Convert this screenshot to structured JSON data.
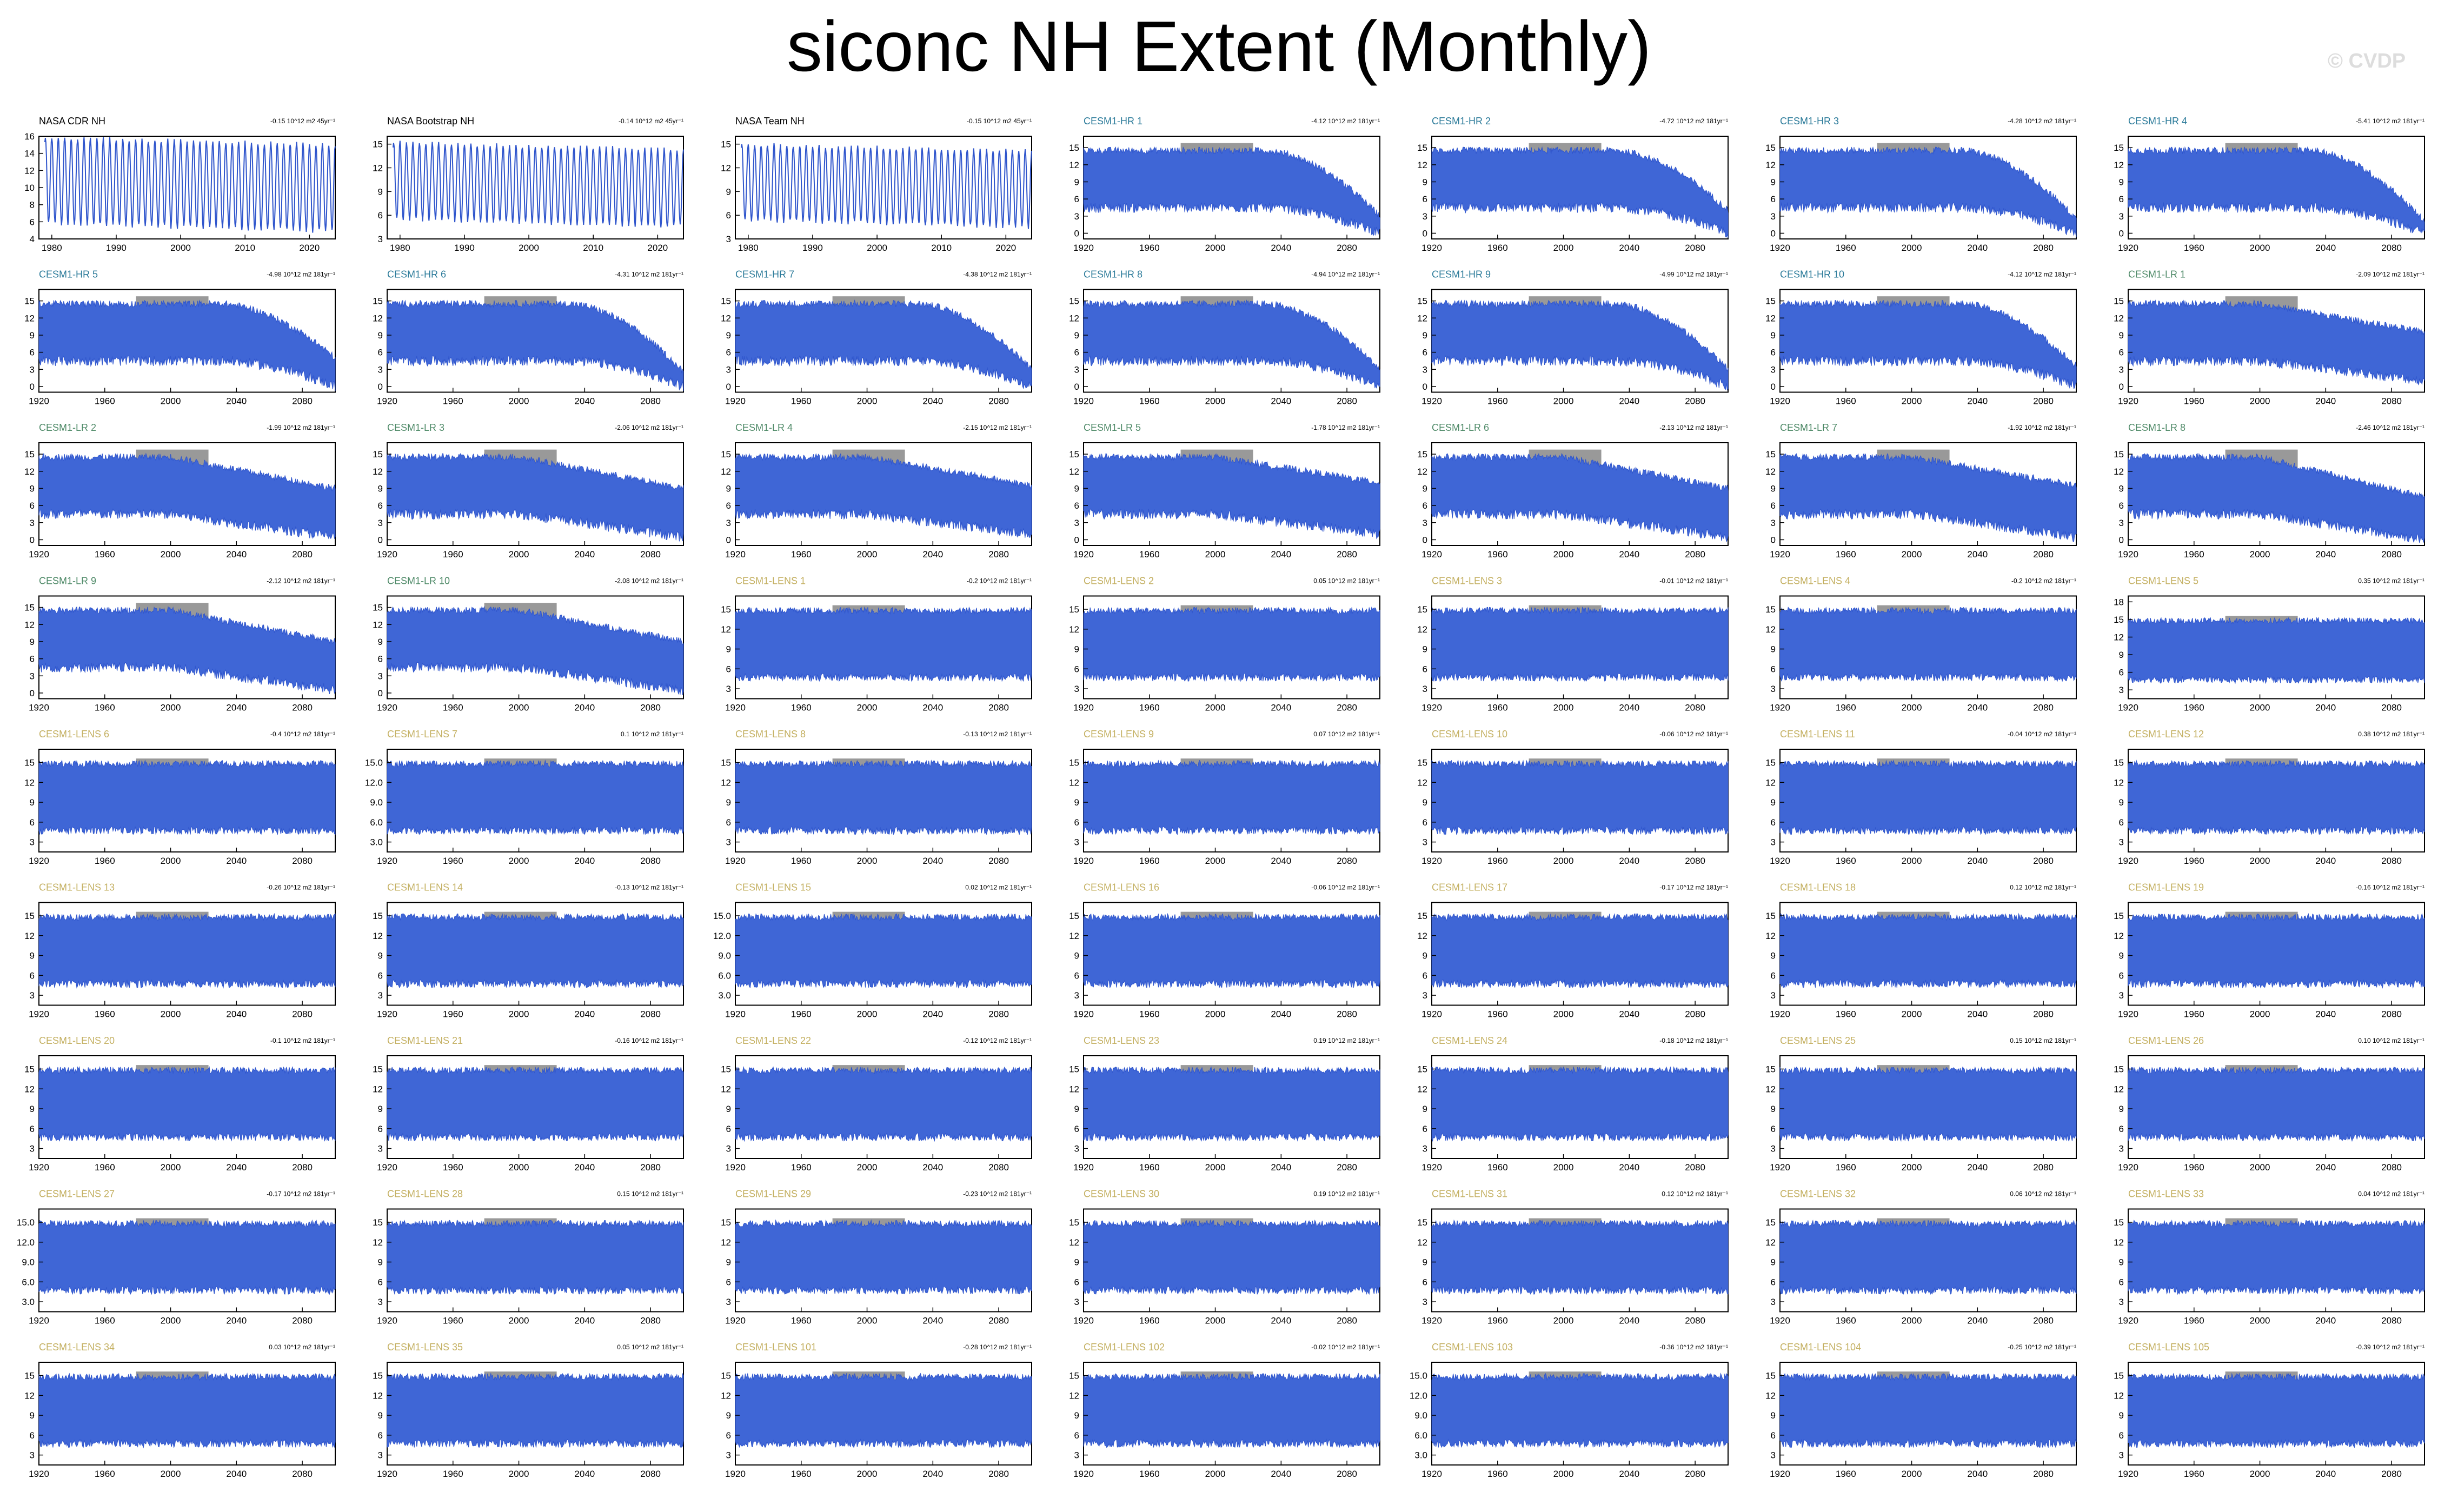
{
  "title": "siconc NH Extent (Monthly)",
  "watermark": "© CVDP",
  "colors": {
    "obs_label": "#000000",
    "hr_label": "#2c7b9a",
    "lr_label": "#4f8a68",
    "lens_label": "#c4b062",
    "series_fill": "#3f66d6",
    "series_line": "#2f55cc",
    "obs_overlay": "#999999"
  },
  "chart_data": {
    "type": "area",
    "layout": "7x9 panel grid",
    "obs_panels": [
      {
        "name": "NASA CDR NH",
        "trend": "-0.15 10^12 m2 45yr⁻¹",
        "yticks": [
          4,
          6,
          8,
          10,
          12,
          14,
          16
        ],
        "ylim": [
          4,
          16
        ],
        "xlim": [
          1978,
          2024
        ],
        "xticks": [
          1980,
          1990,
          2000,
          2010,
          2020
        ],
        "seasonal_max": 15.9,
        "seasonal_min": 5.8
      },
      {
        "name": "NASA Bootstrap NH",
        "trend": "-0.14 10^12 m2 45yr⁻¹",
        "yticks": [
          3,
          6,
          9,
          12,
          15
        ],
        "ylim": [
          3,
          16
        ],
        "xlim": [
          1978,
          2024
        ],
        "xticks": [
          1980,
          1990,
          2000,
          2010,
          2020
        ],
        "seasonal_max": 15.2,
        "seasonal_min": 5.5
      },
      {
        "name": "NASA Team NH",
        "trend": "-0.15 10^12 m2 45yr⁻¹",
        "yticks": [
          3,
          6,
          9,
          12,
          15
        ],
        "ylim": [
          3,
          16
        ],
        "xlim": [
          1978,
          2024
        ],
        "xticks": [
          1980,
          1990,
          2000,
          2010,
          2020
        ],
        "seasonal_max": 15.0,
        "seasonal_min": 5.4
      }
    ],
    "model_xticks": [
      1920,
      1960,
      2000,
      2040,
      2080
    ],
    "model_xlim": [
      1920,
      2100
    ],
    "obs_overlay_period": [
      1979,
      2023
    ],
    "groups": {
      "hr": {
        "yticks": [
          0,
          3,
          6,
          9,
          12,
          15
        ],
        "ylim": [
          -1,
          17
        ],
        "members": [
          {
            "name": "CESM1-HR 1",
            "trend": "-4.12 10^12 m2 181yr⁻¹",
            "end_max": 3.0,
            "end_min": 0.0
          },
          {
            "name": "CESM1-HR 2",
            "trend": "-4.72 10^12 m2 181yr⁻¹",
            "end_max": 4.0,
            "end_min": 0.0
          },
          {
            "name": "CESM1-HR 3",
            "trend": "-4.28 10^12 m2 181yr⁻¹",
            "end_max": 2.5,
            "end_min": 0.0
          },
          {
            "name": "CESM1-HR 4",
            "trend": "-5.41 10^12 m2 181yr⁻¹",
            "end_max": 2.0,
            "end_min": 0.0
          },
          {
            "name": "CESM1-HR 5",
            "trend": "-4.98 10^12 m2 181yr⁻¹",
            "end_max": 5.0,
            "end_min": 0.0
          },
          {
            "name": "CESM1-HR 6",
            "trend": "-4.31 10^12 m2 181yr⁻¹",
            "end_max": 2.5,
            "end_min": 0.0
          },
          {
            "name": "CESM1-HR 7",
            "trend": "-4.38 10^12 m2 181yr⁻¹",
            "end_max": 3.0,
            "end_min": 0.0
          },
          {
            "name": "CESM1-HR 8",
            "trend": "-4.94 10^12 m2 181yr⁻¹",
            "end_max": 3.0,
            "end_min": 0.0
          },
          {
            "name": "CESM1-HR 9",
            "trend": "-4.99 10^12 m2 181yr⁻¹",
            "end_max": 3.0,
            "end_min": 0.0
          },
          {
            "name": "CESM1-HR 10",
            "trend": "-4.12 10^12 m2 181yr⁻¹",
            "end_max": 3.5,
            "end_min": 0.0
          }
        ]
      },
      "lr": {
        "yticks": [
          0,
          3,
          6,
          9,
          12,
          15
        ],
        "ylim": [
          -1,
          17
        ],
        "members": [
          {
            "name": "CESM1-LR 1",
            "trend": "-2.09 10^12 m2 181yr⁻¹",
            "end_max": 9.5,
            "end_min": 1.0
          },
          {
            "name": "CESM1-LR 2",
            "trend": "-1.99 10^12 m2 181yr⁻¹",
            "end_max": 9.0,
            "end_min": 0.5
          },
          {
            "name": "CESM1-LR 3",
            "trend": "-2.06 10^12 m2 181yr⁻¹",
            "end_max": 9.0,
            "end_min": 0.5
          },
          {
            "name": "CESM1-LR 4",
            "trend": "-2.15 10^12 m2 181yr⁻¹",
            "end_max": 9.5,
            "end_min": 1.0
          },
          {
            "name": "CESM1-LR 5",
            "trend": "-1.78 10^12 m2 181yr⁻¹",
            "end_max": 10.0,
            "end_min": 1.0
          },
          {
            "name": "CESM1-LR 6",
            "trend": "-2.13 10^12 m2 181yr⁻¹",
            "end_max": 9.0,
            "end_min": 0.5
          },
          {
            "name": "CESM1-LR 7",
            "trend": "-1.92 10^12 m2 181yr⁻¹",
            "end_max": 9.5,
            "end_min": 0.5
          },
          {
            "name": "CESM1-LR 8",
            "trend": "-2.46 10^12 m2 181yr⁻¹",
            "end_max": 7.5,
            "end_min": 0.0
          },
          {
            "name": "CESM1-LR 9",
            "trend": "-2.12 10^12 m2 181yr⁻¹",
            "end_max": 9.0,
            "end_min": 0.5
          },
          {
            "name": "CESM1-LR 10",
            "trend": "-2.08 10^12 m2 181yr⁻¹",
            "end_max": 9.0,
            "end_min": 0.5
          }
        ]
      },
      "lens": {
        "yticks": [
          3,
          6,
          9,
          12,
          15
        ],
        "ylim": [
          1.5,
          17
        ],
        "members": [
          {
            "name": "CESM1-LENS 1",
            "trend": "-0.2 10^12 m2 181yr⁻¹"
          },
          {
            "name": "CESM1-LENS 2",
            "trend": "0.05 10^12 m2 181yr⁻¹"
          },
          {
            "name": "CESM1-LENS 3",
            "trend": "-0.01 10^12 m2 181yr⁻¹"
          },
          {
            "name": "CESM1-LENS 4",
            "trend": "-0.2 10^12 m2 181yr⁻¹"
          },
          {
            "name": "CESM1-LENS 5",
            "trend": "0.35 10^12 m2 181yr⁻¹",
            "yticks": [
              3,
              6,
              9,
              12,
              15,
              18
            ],
            "ylim": [
              1.5,
              19
            ]
          },
          {
            "name": "CESM1-LENS 6",
            "trend": "-0.4 10^12 m2 181yr⁻¹"
          },
          {
            "name": "CESM1-LENS 7",
            "trend": "0.1 10^12 m2 181yr⁻¹",
            "yticks": [
              3.0,
              6.0,
              9.0,
              12.0,
              15.0
            ],
            "ytick_labels": [
              "3.0",
              "6.0",
              "9.0",
              "12.0",
              "15.0"
            ]
          },
          {
            "name": "CESM1-LENS 8",
            "trend": "-0.13 10^12 m2 181yr⁻¹"
          },
          {
            "name": "CESM1-LENS 9",
            "trend": "0.07 10^12 m2 181yr⁻¹"
          },
          {
            "name": "CESM1-LENS 10",
            "trend": "-0.06 10^12 m2 181yr⁻¹"
          },
          {
            "name": "CESM1-LENS 11",
            "trend": "-0.04 10^12 m2 181yr⁻¹"
          },
          {
            "name": "CESM1-LENS 12",
            "trend": "0.38 10^12 m2 181yr⁻¹"
          },
          {
            "name": "CESM1-LENS 13",
            "trend": "-0.26 10^12 m2 181yr⁻¹"
          },
          {
            "name": "CESM1-LENS 14",
            "trend": "-0.13 10^12 m2 181yr⁻¹"
          },
          {
            "name": "CESM1-LENS 15",
            "trend": "0.02 10^12 m2 181yr⁻¹",
            "yticks": [
              3.0,
              6.0,
              9.0,
              12.0,
              15.0
            ],
            "ytick_labels": [
              "3.0",
              "6.0",
              "9.0",
              "12.0",
              "15.0"
            ]
          },
          {
            "name": "CESM1-LENS 16",
            "trend": "-0.06 10^12 m2 181yr⁻¹"
          },
          {
            "name": "CESM1-LENS 17",
            "trend": "-0.17 10^12 m2 181yr⁻¹"
          },
          {
            "name": "CESM1-LENS 18",
            "trend": "0.12 10^12 m2 181yr⁻¹"
          },
          {
            "name": "CESM1-LENS 19",
            "trend": "-0.16 10^12 m2 181yr⁻¹"
          },
          {
            "name": "CESM1-LENS 20",
            "trend": "-0.1 10^12 m2 181yr⁻¹"
          },
          {
            "name": "CESM1-LENS 21",
            "trend": "-0.16 10^12 m2 181yr⁻¹"
          },
          {
            "name": "CESM1-LENS 22",
            "trend": "-0.12 10^12 m2 181yr⁻¹"
          },
          {
            "name": "CESM1-LENS 23",
            "trend": "0.19 10^12 m2 181yr⁻¹"
          },
          {
            "name": "CESM1-LENS 24",
            "trend": "-0.18 10^12 m2 181yr⁻¹"
          },
          {
            "name": "CESM1-LENS 25",
            "trend": "0.15 10^12 m2 181yr⁻¹"
          },
          {
            "name": "CESM1-LENS 26",
            "trend": "0.10 10^12 m2 181yr⁻¹"
          },
          {
            "name": "CESM1-LENS 27",
            "trend": "-0.17 10^12 m2 181yr⁻¹",
            "yticks": [
              3.0,
              6.0,
              9.0,
              12.0,
              15.0
            ],
            "ytick_labels": [
              "3.0",
              "6.0",
              "9.0",
              "12.0",
              "15.0"
            ]
          },
          {
            "name": "CESM1-LENS 28",
            "trend": "0.15 10^12 m2 181yr⁻¹"
          },
          {
            "name": "CESM1-LENS 29",
            "trend": "-0.23 10^12 m2 181yr⁻¹"
          },
          {
            "name": "CESM1-LENS 30",
            "trend": "0.19 10^12 m2 181yr⁻¹"
          },
          {
            "name": "CESM1-LENS 31",
            "trend": "0.12 10^12 m2 181yr⁻¹"
          },
          {
            "name": "CESM1-LENS 32",
            "trend": "0.06 10^12 m2 181yr⁻¹"
          },
          {
            "name": "CESM1-LENS 33",
            "trend": "0.04 10^12 m2 181yr⁻¹"
          },
          {
            "name": "CESM1-LENS 34",
            "trend": "0.03 10^12 m2 181yr⁻¹"
          },
          {
            "name": "CESM1-LENS 35",
            "trend": "0.05 10^12 m2 181yr⁻¹"
          },
          {
            "name": "CESM1-LENS 101",
            "trend": "-0.28 10^12 m2 181yr⁻¹"
          },
          {
            "name": "CESM1-LENS 102",
            "trend": "-0.02 10^12 m2 181yr⁻¹"
          },
          {
            "name": "CESM1-LENS 103",
            "trend": "-0.36 10^12 m2 181yr⁻¹",
            "yticks": [
              3.0,
              6.0,
              9.0,
              12.0,
              15.0
            ],
            "ytick_labels": [
              "3.0",
              "6.0",
              "9.0",
              "12.0",
              "15.0"
            ]
          },
          {
            "name": "CESM1-LENS 104",
            "trend": "-0.25 10^12 m2 181yr⁻¹"
          },
          {
            "name": "CESM1-LENS 105",
            "trend": "-0.39 10^12 m2 181yr⁻¹"
          }
        ]
      }
    },
    "model_series": {
      "hist_max": 14.5,
      "hist_min": 4.5,
      "lens_max": 14.8,
      "lens_min": 4.5
    }
  }
}
